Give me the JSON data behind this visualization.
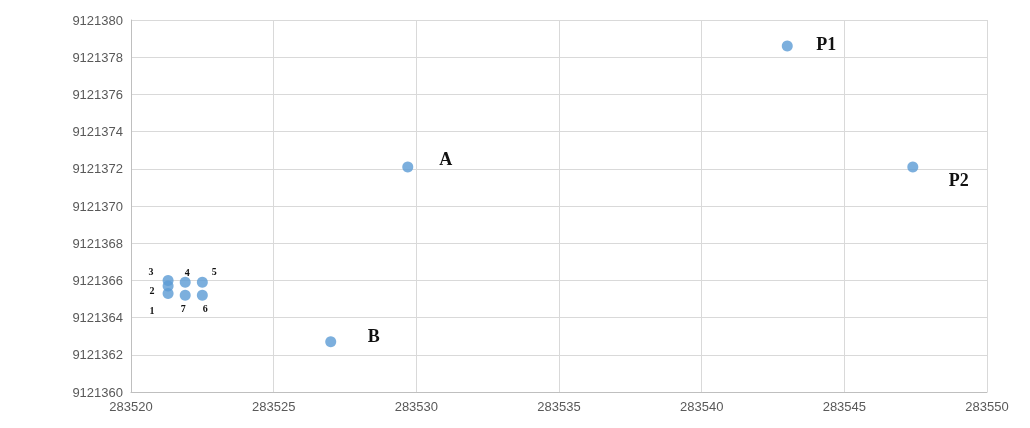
{
  "chart_data": {
    "type": "scatter",
    "x": [
      283521.3,
      283521.3,
      283521.3,
      283521.9,
      283522.5,
      283522.5,
      283521.9,
      283529.7,
      283527.0,
      283543.0,
      283547.4
    ],
    "values": [
      9121365.3,
      9121365.7,
      9121366.0,
      9121365.9,
      9121365.9,
      9121365.2,
      9121365.2,
      9121372.1,
      9121362.7,
      9121378.6,
      9121372.1
    ],
    "color": "#5b9bd5",
    "marker": "circle",
    "grid": true,
    "xlim": [
      283520,
      283550
    ],
    "xticks": [
      283520,
      283525,
      283530,
      283535,
      283540,
      283545,
      283550
    ],
    "ylim": [
      9121360,
      9121380
    ],
    "yticks": [
      9121360,
      9121362,
      9121364,
      9121366,
      9121368,
      9121370,
      9121372,
      9121374,
      9121376,
      9121378,
      9121380
    ],
    "annotations": [
      {
        "text": "1",
        "x": 283521.3,
        "y": 9121365.3
      },
      {
        "text": "2",
        "x": 283521.3,
        "y": 9121365.7
      },
      {
        "text": "3",
        "x": 283521.3,
        "y": 9121366.0
      },
      {
        "text": "4",
        "x": 283521.9,
        "y": 9121365.9
      },
      {
        "text": "5",
        "x": 283522.5,
        "y": 9121365.9
      },
      {
        "text": "6",
        "x": 283522.5,
        "y": 9121365.2
      },
      {
        "text": "7",
        "x": 283521.9,
        "y": 9121365.2
      },
      {
        "text": "A",
        "x": 283529.7,
        "y": 9121372.1
      },
      {
        "text": "B",
        "x": 283527.0,
        "y": 9121362.7
      },
      {
        "text": "P1",
        "x": 283543.0,
        "y": 9121378.6
      },
      {
        "text": "P2",
        "x": 283547.4,
        "y": 9121372.1
      }
    ]
  }
}
